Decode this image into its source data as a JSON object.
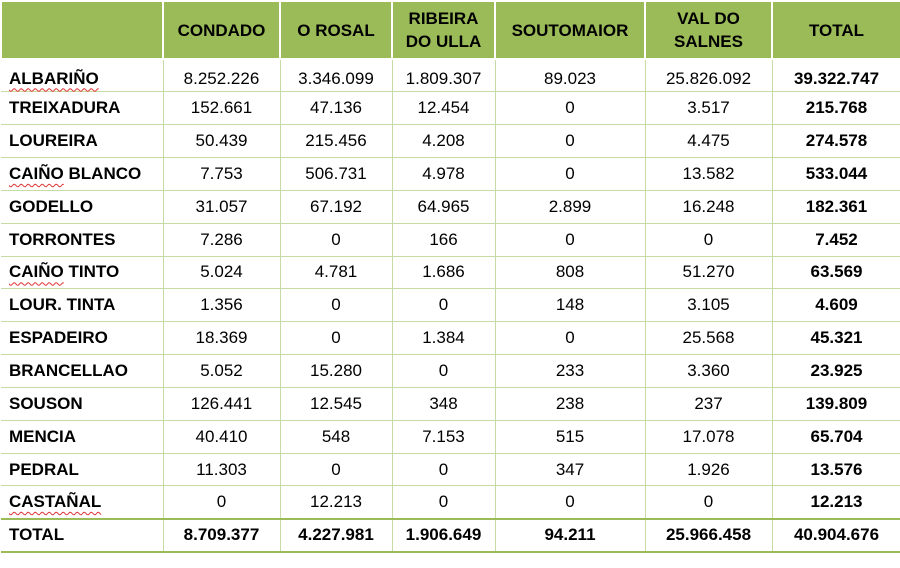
{
  "columns": [
    "",
    "CONDADO",
    "O ROSAL",
    "RIBEIRA DO ULLA",
    "SOUTOMAIOR",
    "VAL DO SALNES",
    "TOTAL"
  ],
  "rows": [
    {
      "label": "ALBARIÑO",
      "flagged": true,
      "values": [
        "8.252.226",
        "3.346.099",
        "1.809.307",
        "89.023",
        "25.826.092"
      ],
      "total": "39.322.747"
    },
    {
      "label": "TREIXADURA",
      "flagged": false,
      "values": [
        "152.661",
        "47.136",
        "12.454",
        "0",
        "3.517"
      ],
      "total": "215.768"
    },
    {
      "label": "LOUREIRA",
      "flagged": false,
      "values": [
        "50.439",
        "215.456",
        "4.208",
        "0",
        "4.475"
      ],
      "total": "274.578"
    },
    {
      "label": "CAIÑO BLANCO",
      "flagged": true,
      "flag_part": "CAIÑO",
      "rest": " BLANCO",
      "values": [
        "7.753",
        "506.731",
        "4.978",
        "0",
        "13.582"
      ],
      "total": "533.044"
    },
    {
      "label": "GODELLO",
      "flagged": false,
      "values": [
        "31.057",
        "67.192",
        "64.965",
        "2.899",
        "16.248"
      ],
      "total": "182.361"
    },
    {
      "label": "TORRONTES",
      "flagged": false,
      "values": [
        "7.286",
        "0",
        "166",
        "0",
        "0"
      ],
      "total": "7.452"
    },
    {
      "label": "CAIÑO TINTO",
      "flagged": true,
      "flag_part": "CAIÑO",
      "rest": " TINTO",
      "values": [
        "5.024",
        "4.781",
        "1.686",
        "808",
        "51.270"
      ],
      "total": "63.569"
    },
    {
      "label": "LOUR. TINTA",
      "flagged": false,
      "values": [
        "1.356",
        "0",
        "0",
        "148",
        "3.105"
      ],
      "total": "4.609"
    },
    {
      "label": "ESPADEIRO",
      "flagged": false,
      "values": [
        "18.369",
        "0",
        "1.384",
        "0",
        "25.568"
      ],
      "total": "45.321"
    },
    {
      "label": "BRANCELLAO",
      "flagged": false,
      "values": [
        "5.052",
        "15.280",
        "0",
        "233",
        "3.360"
      ],
      "total": "23.925"
    },
    {
      "label": "SOUSON",
      "flagged": false,
      "values": [
        "126.441",
        "12.545",
        "348",
        "238",
        "237"
      ],
      "total": "139.809"
    },
    {
      "label": "MENCIA",
      "flagged": false,
      "values": [
        "40.410",
        "548",
        "7.153",
        "515",
        "17.078"
      ],
      "total": "65.704"
    },
    {
      "label": "PEDRAL",
      "flagged": false,
      "values": [
        "11.303",
        "0",
        "0",
        "347",
        "1.926"
      ],
      "total": "13.576"
    },
    {
      "label": "CASTAÑAL",
      "flagged": true,
      "values": [
        "0",
        "12.213",
        "0",
        "0",
        "0"
      ],
      "total": "12.213"
    }
  ],
  "total_row": {
    "label": "TOTAL",
    "values": [
      "8.709.377",
      "4.227.981",
      "1.906.649",
      "94.211",
      "25.966.458"
    ],
    "total": "40.904.676"
  },
  "colors": {
    "header_bg": "#9bbb59",
    "grid_line": "#c6dba6",
    "spellcheck_underline": "#e03030"
  }
}
